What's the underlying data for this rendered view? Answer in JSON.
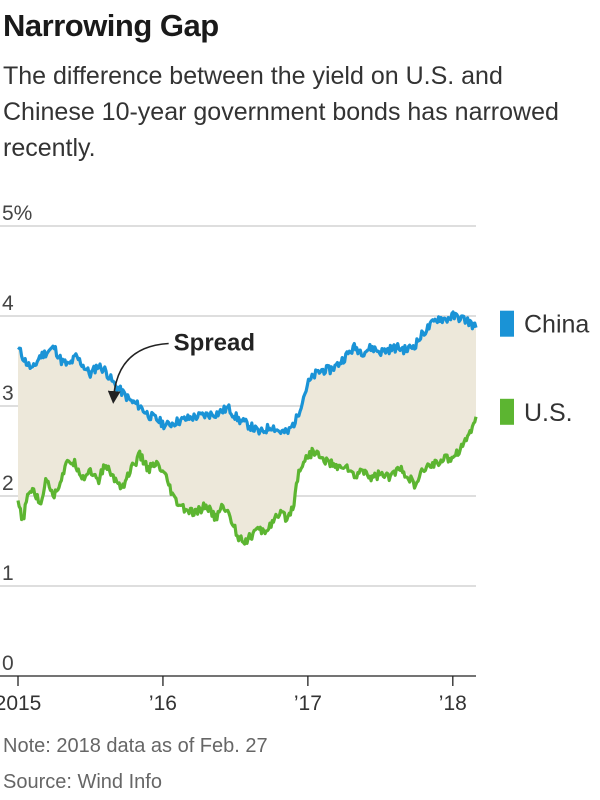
{
  "header": {
    "title": "Narrowing Gap",
    "subtitle": "The difference between the yield on U.S. and Chinese 10-year government bonds has narrowed recently."
  },
  "footer": {
    "note": "Note: 2018 data as of Feb. 27",
    "source": "Source: Wind Info"
  },
  "chart_data": {
    "type": "line",
    "title": "Narrowing Gap",
    "xlabel": "",
    "ylabel": "",
    "ylim": [
      0,
      5
    ],
    "xlim": [
      2015.0,
      2018.16
    ],
    "y_ticks": [
      {
        "value": 0,
        "label": "0"
      },
      {
        "value": 1,
        "label": "1"
      },
      {
        "value": 2,
        "label": "2"
      },
      {
        "value": 3,
        "label": "3"
      },
      {
        "value": 4,
        "label": "4"
      },
      {
        "value": 5,
        "label": "5%"
      }
    ],
    "x_ticks": [
      {
        "value": 2015,
        "label": "2015"
      },
      {
        "value": 2016,
        "label": "’16"
      },
      {
        "value": 2017,
        "label": "’17"
      },
      {
        "value": 2018,
        "label": "’18"
      }
    ],
    "grid": true,
    "annotation": {
      "text": "Spread",
      "x": 2015.66,
      "y": 3.05
    },
    "legend_position": "right",
    "series": [
      {
        "name": "China",
        "color": "#1a93d6",
        "x": [
          2015.0,
          2015.05,
          2015.1,
          2015.15,
          2015.2,
          2015.25,
          2015.3,
          2015.35,
          2015.4,
          2015.45,
          2015.5,
          2015.55,
          2015.6,
          2015.66,
          2015.72,
          2015.78,
          2015.84,
          2015.9,
          2015.96,
          2016.02,
          2016.08,
          2016.15,
          2016.22,
          2016.3,
          2016.38,
          2016.45,
          2016.52,
          2016.6,
          2016.67,
          2016.75,
          2016.8,
          2016.86,
          2016.92,
          2016.97,
          2017.0,
          2017.05,
          2017.1,
          2017.15,
          2017.2,
          2017.26,
          2017.32,
          2017.38,
          2017.44,
          2017.5,
          2017.56,
          2017.62,
          2017.68,
          2017.74,
          2017.8,
          2017.85,
          2017.9,
          2017.95,
          2018.0,
          2018.05,
          2018.1,
          2018.16
        ],
        "values": [
          3.65,
          3.5,
          3.4,
          3.55,
          3.6,
          3.65,
          3.5,
          3.45,
          3.55,
          3.45,
          3.35,
          3.45,
          3.4,
          3.25,
          3.15,
          3.05,
          3.0,
          2.9,
          2.85,
          2.78,
          2.82,
          2.85,
          2.88,
          2.9,
          2.92,
          2.98,
          2.85,
          2.78,
          2.7,
          2.78,
          2.72,
          2.7,
          2.85,
          3.1,
          3.25,
          3.35,
          3.4,
          3.4,
          3.45,
          3.55,
          3.65,
          3.6,
          3.65,
          3.6,
          3.63,
          3.65,
          3.62,
          3.68,
          3.82,
          3.9,
          3.98,
          3.96,
          4.0,
          3.98,
          3.95,
          3.87
        ]
      },
      {
        "name": "U.S.",
        "color": "#5cb531",
        "x": [
          2015.0,
          2015.03,
          2015.06,
          2015.1,
          2015.15,
          2015.2,
          2015.25,
          2015.3,
          2015.35,
          2015.4,
          2015.45,
          2015.5,
          2015.55,
          2015.6,
          2015.66,
          2015.72,
          2015.78,
          2015.84,
          2015.9,
          2015.96,
          2016.02,
          2016.08,
          2016.15,
          2016.22,
          2016.3,
          2016.36,
          2016.42,
          2016.48,
          2016.52,
          2016.58,
          2016.64,
          2016.7,
          2016.76,
          2016.82,
          2016.86,
          2016.9,
          2016.94,
          2017.0,
          2017.05,
          2017.1,
          2017.15,
          2017.2,
          2017.26,
          2017.32,
          2017.38,
          2017.44,
          2017.5,
          2017.56,
          2017.62,
          2017.68,
          2017.74,
          2017.8,
          2017.86,
          2017.92,
          2017.98,
          2018.04,
          2018.1,
          2018.16
        ],
        "values": [
          1.95,
          1.7,
          1.95,
          2.1,
          1.9,
          2.2,
          2.0,
          2.2,
          2.4,
          2.35,
          2.2,
          2.3,
          2.15,
          2.35,
          2.2,
          2.1,
          2.3,
          2.45,
          2.3,
          2.35,
          2.2,
          1.95,
          1.85,
          1.8,
          1.9,
          1.75,
          1.9,
          1.7,
          1.55,
          1.5,
          1.62,
          1.6,
          1.72,
          1.8,
          1.75,
          1.9,
          2.3,
          2.45,
          2.5,
          2.4,
          2.38,
          2.3,
          2.35,
          2.2,
          2.3,
          2.2,
          2.25,
          2.2,
          2.3,
          2.25,
          2.1,
          2.3,
          2.35,
          2.4,
          2.42,
          2.5,
          2.65,
          2.88
        ]
      }
    ]
  }
}
